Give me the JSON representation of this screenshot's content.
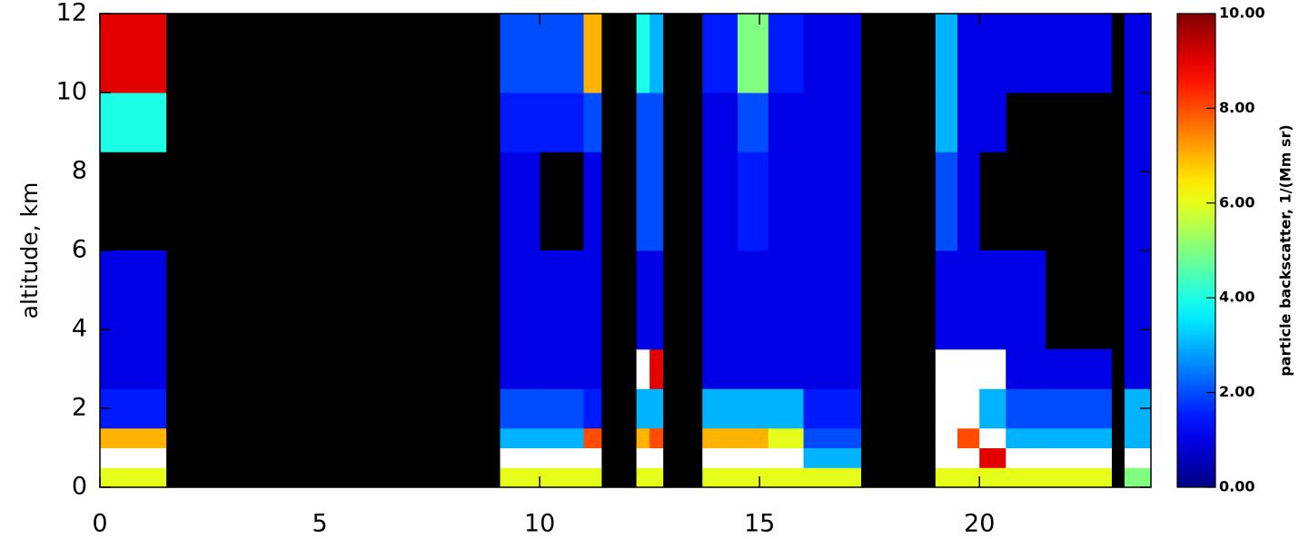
{
  "chart_data": {
    "type": "heatmap",
    "y_label": "altitude, km",
    "colorbar_label": "particle backscatter, 1/(Mm sr)",
    "xlim": [
      0,
      23.9
    ],
    "ylim": [
      0,
      12
    ],
    "xticks": [
      0,
      5,
      10,
      15,
      20
    ],
    "yticks": [
      0,
      2,
      4,
      6,
      8,
      10,
      12
    ],
    "clim": [
      0,
      10
    ],
    "cticks": [
      {
        "value": 0,
        "label": "0.00"
      },
      {
        "value": 2,
        "label": "2.00"
      },
      {
        "value": 4,
        "label": "4.00"
      },
      {
        "value": 6,
        "label": "6.00"
      },
      {
        "value": 8,
        "label": "8.00"
      },
      {
        "value": 10,
        "label": "10.00"
      }
    ],
    "colormap": "jet",
    "over_color": "#ffffff",
    "missing_color": "#000000",
    "x_edges": [
      0,
      1.5,
      9.1,
      10,
      11,
      11.4,
      12.2,
      12.5,
      12.8,
      13.7,
      14.5,
      15.2,
      16,
      17.3,
      19,
      19.5,
      20,
      20.6,
      21.5,
      23,
      23.3,
      23.9
    ],
    "y_edges": [
      0,
      0.5,
      1,
      1.5,
      2.5,
      3.5,
      6,
      8.5,
      10,
      12
    ],
    "values": [
      [
        6,
        12,
        7,
        1.5,
        1,
        1,
        null,
        4,
        9
      ],
      [
        null,
        null,
        null,
        null,
        null,
        null,
        null,
        null,
        null
      ],
      [
        6,
        12,
        3,
        2,
        1,
        1,
        1,
        1.5,
        2
      ],
      [
        6,
        12,
        3,
        2,
        1,
        1,
        null,
        1.5,
        2
      ],
      [
        6,
        12,
        8,
        1.5,
        1,
        1,
        1,
        2,
        7
      ],
      [
        null,
        null,
        null,
        null,
        null,
        null,
        null,
        null,
        null
      ],
      [
        6,
        12,
        7,
        3,
        12,
        1,
        2,
        2,
        4
      ],
      [
        6,
        12,
        8,
        3,
        9,
        1,
        2,
        2,
        3
      ],
      [
        null,
        null,
        null,
        null,
        null,
        null,
        null,
        null,
        null
      ],
      [
        6,
        12,
        7,
        3,
        1,
        1,
        1,
        1,
        1.5
      ],
      [
        6,
        12,
        7,
        3,
        1,
        1,
        1.5,
        2,
        5
      ],
      [
        6,
        12,
        6,
        3,
        1,
        1,
        1,
        1,
        1.5
      ],
      [
        6,
        3,
        2,
        1.5,
        1,
        1,
        1,
        1,
        1
      ],
      [
        null,
        null,
        null,
        null,
        null,
        null,
        null,
        null,
        null
      ],
      [
        6,
        12,
        12,
        12,
        12,
        1,
        2,
        3,
        3
      ],
      [
        6,
        12,
        8,
        12,
        12,
        1,
        1,
        1,
        1
      ],
      [
        6,
        9,
        12,
        3,
        12,
        1,
        null,
        1,
        1
      ],
      [
        6,
        12,
        3,
        2,
        1,
        1,
        null,
        null,
        1
      ],
      [
        6,
        12,
        3,
        2,
        1,
        null,
        null,
        null,
        1
      ],
      [
        null,
        null,
        null,
        null,
        null,
        null,
        null,
        null,
        null
      ],
      [
        5,
        12,
        3,
        3,
        1,
        1,
        1,
        1,
        1
      ]
    ]
  }
}
